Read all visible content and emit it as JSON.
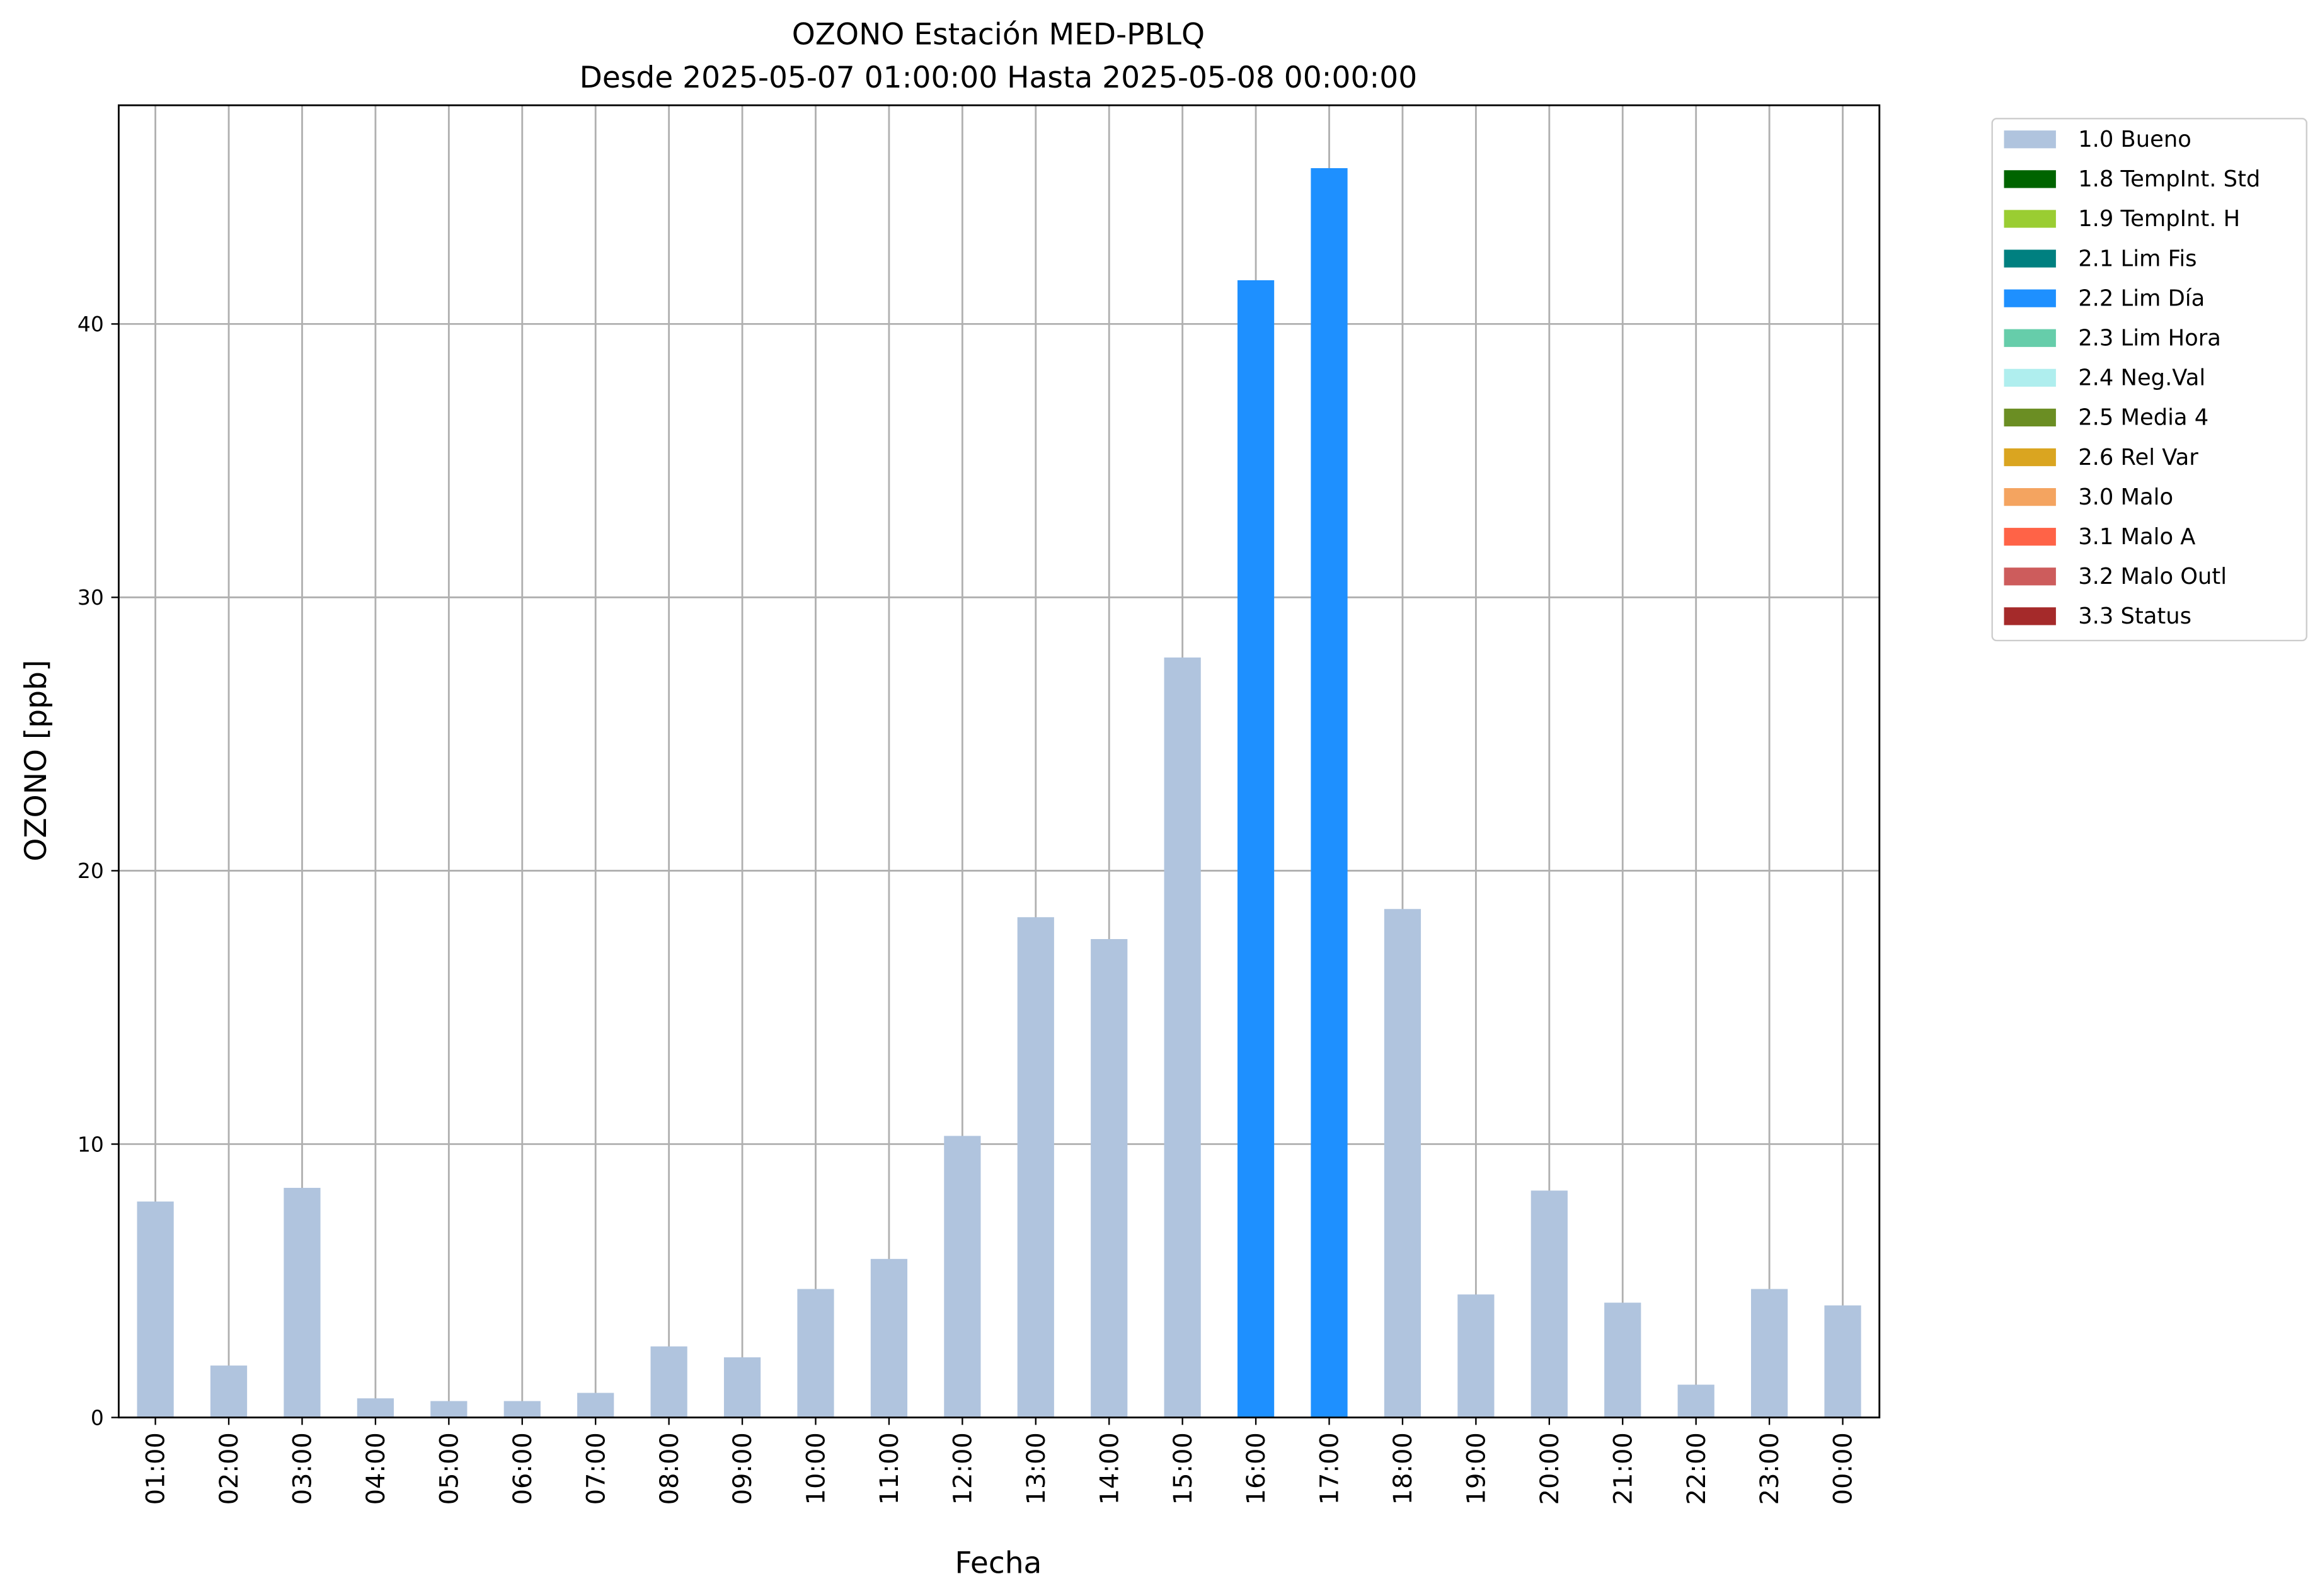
{
  "chart_data": {
    "type": "bar",
    "stacked": true,
    "title": "OZONO Estación MED-PBLQ",
    "subtitle": "Desde 2025-05-07 01:00:00 Hasta 2025-05-08 00:00:00",
    "x_label": "Fecha",
    "y_label": "OZONO [ppb]",
    "categories": [
      "01:00",
      "02:00",
      "03:00",
      "04:00",
      "05:00",
      "06:00",
      "07:00",
      "08:00",
      "09:00",
      "10:00",
      "11:00",
      "12:00",
      "13:00",
      "14:00",
      "15:00",
      "16:00",
      "17:00",
      "18:00",
      "19:00",
      "20:00",
      "21:00",
      "22:00",
      "23:00",
      "00:00"
    ],
    "ylim": [
      0,
      48
    ],
    "yticks": [
      0,
      10,
      20,
      30,
      40
    ],
    "grid": true,
    "legend": "outside-upper-right",
    "series": [
      {
        "name": "1.0 Bueno",
        "color": "#b0c4de",
        "values": [
          7.9,
          1.9,
          8.4,
          0.7,
          0.6,
          0.6,
          0.9,
          2.6,
          2.2,
          4.7,
          5.8,
          10.3,
          18.3,
          17.5,
          27.8,
          null,
          null,
          18.6,
          4.5,
          8.3,
          4.2,
          1.2,
          4.7,
          4.1
        ]
      },
      {
        "name": "1.8 TempInt. Std",
        "color": "#006400",
        "values": [
          null,
          null,
          null,
          null,
          null,
          null,
          null,
          null,
          null,
          null,
          null,
          null,
          null,
          null,
          null,
          null,
          null,
          null,
          null,
          null,
          null,
          null,
          null,
          null
        ]
      },
      {
        "name": "1.9 TempInt. H",
        "color": "#9acd32",
        "values": [
          null,
          null,
          null,
          null,
          null,
          null,
          null,
          null,
          null,
          null,
          null,
          null,
          null,
          null,
          null,
          null,
          null,
          null,
          null,
          null,
          null,
          null,
          null,
          null
        ]
      },
      {
        "name": "2.1 Lim Fis",
        "color": "#008080",
        "values": [
          null,
          null,
          null,
          null,
          null,
          null,
          null,
          null,
          null,
          null,
          null,
          null,
          null,
          null,
          null,
          null,
          null,
          null,
          null,
          null,
          null,
          null,
          null,
          null
        ]
      },
      {
        "name": "2.2 Lim Día",
        "color": "#1e90ff",
        "values": [
          null,
          null,
          null,
          null,
          null,
          null,
          null,
          null,
          null,
          null,
          null,
          null,
          null,
          null,
          null,
          41.6,
          45.7,
          null,
          null,
          null,
          null,
          null,
          null,
          null
        ]
      },
      {
        "name": "2.3 Lim Hora",
        "color": "#66cdaa",
        "values": [
          null,
          null,
          null,
          null,
          null,
          null,
          null,
          null,
          null,
          null,
          null,
          null,
          null,
          null,
          null,
          null,
          null,
          null,
          null,
          null,
          null,
          null,
          null,
          null
        ]
      },
      {
        "name": "2.4 Neg.Val",
        "color": "#afeeee",
        "values": [
          null,
          null,
          null,
          null,
          null,
          null,
          null,
          null,
          null,
          null,
          null,
          null,
          null,
          null,
          null,
          null,
          null,
          null,
          null,
          null,
          null,
          null,
          null,
          null
        ]
      },
      {
        "name": "2.5 Media 4",
        "color": "#6b8e23",
        "values": [
          null,
          null,
          null,
          null,
          null,
          null,
          null,
          null,
          null,
          null,
          null,
          null,
          null,
          null,
          null,
          null,
          null,
          null,
          null,
          null,
          null,
          null,
          null,
          null
        ]
      },
      {
        "name": "2.6 Rel Var",
        "color": "#daa520",
        "values": [
          null,
          null,
          null,
          null,
          null,
          null,
          null,
          null,
          null,
          null,
          null,
          null,
          null,
          null,
          null,
          null,
          null,
          null,
          null,
          null,
          null,
          null,
          null,
          null
        ]
      },
      {
        "name": "3.0 Malo",
        "color": "#f4a460",
        "values": [
          null,
          null,
          null,
          null,
          null,
          null,
          null,
          null,
          null,
          null,
          null,
          null,
          null,
          null,
          null,
          null,
          null,
          null,
          null,
          null,
          null,
          null,
          null,
          null
        ]
      },
      {
        "name": "3.1 Malo A",
        "color": "#ff6347",
        "values": [
          null,
          null,
          null,
          null,
          null,
          null,
          null,
          null,
          null,
          null,
          null,
          null,
          null,
          null,
          null,
          null,
          null,
          null,
          null,
          null,
          null,
          null,
          null,
          null
        ]
      },
      {
        "name": "3.2 Malo Outl",
        "color": "#cd5c5c",
        "values": [
          null,
          null,
          null,
          null,
          null,
          null,
          null,
          null,
          null,
          null,
          null,
          null,
          null,
          null,
          null,
          null,
          null,
          null,
          null,
          null,
          null,
          null,
          null,
          null
        ]
      },
      {
        "name": "3.3 Status",
        "color": "#a52a2a",
        "values": [
          null,
          null,
          null,
          null,
          null,
          null,
          null,
          null,
          null,
          null,
          null,
          null,
          null,
          null,
          null,
          null,
          null,
          null,
          null,
          null,
          null,
          null,
          null,
          null
        ]
      }
    ]
  }
}
